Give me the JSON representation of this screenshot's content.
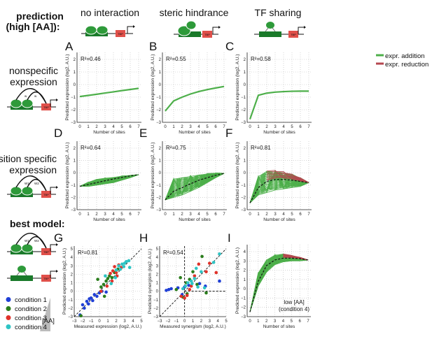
{
  "header": {
    "prediction_line1": "prediction",
    "prediction_line2": "(high [AA]):",
    "best_model": "best model:"
  },
  "columns": [
    "no interaction",
    "steric hindrance",
    "TF sharing"
  ],
  "rows": {
    "nonspecific": [
      "nonspecific",
      "expression"
    ],
    "position_specific": [
      "position specific",
      "expression"
    ]
  },
  "diagram_labels": {
    "tbp": "TBP",
    "w": "w",
    "w1": "W1",
    "w2": "W2"
  },
  "legend": {
    "addition": "expr. addition",
    "reduction": "expr. reduction",
    "addition_color": "#4daf4a",
    "reduction_color": "#b5474f"
  },
  "conditions": {
    "labels": [
      "condition 1",
      "condition 2",
      "condition 3",
      "condition 4"
    ],
    "colors": [
      "#1f3fd6",
      "#2a7d1c",
      "#e0322a",
      "#2ec4c4"
    ],
    "gradient_label": "[AA]"
  },
  "axis_labels": {
    "sites": "Number of sites",
    "pred_expr": "Predicted expression (log2, A.U.)",
    "meas_expr": "Measured expression (log2, A.U.)",
    "pred_syn": "Predicted synergism (log2, A.U.)",
    "meas_syn": "Measured synergism (log2, A.U.)"
  },
  "panel_I_note": [
    "low [AA]",
    "(condition 4)"
  ],
  "chart_data": [
    {
      "panel": "A",
      "type": "line",
      "r2": "R²=0.46",
      "x": [
        0,
        1,
        2,
        3,
        4,
        5,
        6,
        7
      ],
      "ylim": [
        -3,
        2
      ],
      "values": [
        -0.95,
        -0.86,
        -0.77,
        -0.67,
        -0.58,
        -0.48,
        -0.39,
        -0.3
      ]
    },
    {
      "panel": "B",
      "type": "line",
      "r2": "R²=0.55",
      "x": [
        0,
        1,
        2,
        3,
        4,
        5,
        6,
        7
      ],
      "ylim": [
        -3,
        2
      ],
      "values": [
        -2.1,
        -1.3,
        -1.0,
        -0.75,
        -0.55,
        -0.4,
        -0.27,
        -0.15
      ]
    },
    {
      "panel": "C",
      "type": "line",
      "r2": "R²=0.58",
      "x": [
        0,
        1,
        2,
        3,
        4,
        5,
        6,
        7
      ],
      "ylim": [
        -3,
        2
      ],
      "values": [
        -2.75,
        -0.85,
        -0.68,
        -0.6,
        -0.56,
        -0.53,
        -0.52,
        -0.52
      ]
    },
    {
      "panel": "D",
      "type": "line",
      "r2": "R²=0.64",
      "x": [
        0,
        1,
        2,
        3,
        4,
        5,
        6,
        7
      ],
      "ylim": [
        -3,
        2
      ],
      "mean": [
        -1.1,
        -0.95,
        -0.8,
        -0.65,
        -0.5,
        -0.38,
        -0.25,
        -0.15
      ],
      "upper": [
        -1.1,
        -0.75,
        -0.5,
        -0.4,
        -0.35,
        -0.25,
        -0.2,
        -0.15
      ],
      "lower": [
        -1.1,
        -1.1,
        -1.0,
        -0.9,
        -0.8,
        -0.6,
        -0.4,
        -0.15
      ]
    },
    {
      "panel": "E",
      "type": "line",
      "r2": "R²=0.75",
      "x": [
        0,
        1,
        2,
        3,
        4,
        5,
        6,
        7
      ],
      "ylim": [
        -3,
        2
      ],
      "mean": [
        -2.2,
        -1.5,
        -1.2,
        -0.9,
        -0.6,
        -0.4,
        -0.2,
        -0.05
      ],
      "upper": [
        -2.2,
        -0.4,
        -0.3,
        -0.2,
        -0.1,
        -0.05,
        0,
        -0.05
      ],
      "lower": [
        -2.2,
        -2.0,
        -1.8,
        -1.5,
        -1.2,
        -0.8,
        -0.4,
        -0.05
      ]
    },
    {
      "panel": "F",
      "type": "line",
      "r2": "R²=0.81",
      "x": [
        0,
        1,
        2,
        3,
        4,
        5,
        6,
        7
      ],
      "ylim": [
        -3,
        2
      ],
      "mean": [
        -2.45,
        -1.2,
        -0.7,
        -0.55,
        -0.55,
        -0.6,
        -0.7,
        -0.8
      ],
      "upper": [
        -2.45,
        -0.2,
        0.25,
        0.2,
        0.1,
        -0.1,
        -0.4,
        -0.8
      ],
      "lower": [
        -2.45,
        -1.8,
        -1.6,
        -1.4,
        -1.3,
        -1.2,
        -1.1,
        -0.8
      ],
      "reduction_from": 2
    },
    {
      "panel": "G",
      "type": "scatter",
      "r2": "R²=0.81",
      "xlim": [
        -3,
        5
      ],
      "ylim": [
        -3,
        5
      ],
      "series": [
        {
          "name": "condition 1",
          "points": [
            [
              -2.3,
              -2.8
            ],
            [
              -2,
              -1.6
            ],
            [
              -1.8,
              -2
            ],
            [
              -1.5,
              -1.2
            ],
            [
              -1.3,
              -1.5
            ],
            [
              -1,
              -0.8
            ],
            [
              -0.8,
              -1.1
            ],
            [
              -0.6,
              -0.4
            ],
            [
              -0.3,
              -0.6
            ],
            [
              0,
              -0.2
            ],
            [
              0.3,
              0
            ],
            [
              -1.2,
              -0.9
            ],
            [
              0.8,
              -0.1
            ]
          ]
        },
        {
          "name": "condition 2",
          "points": [
            [
              -2.2,
              -2.9
            ],
            [
              -0.2,
              1.4
            ],
            [
              0.5,
              0.8
            ],
            [
              0.8,
              1.2
            ],
            [
              1,
              1.5
            ],
            [
              1.2,
              1.8
            ],
            [
              1.5,
              1.6
            ],
            [
              0.6,
              -0.6
            ],
            [
              1.8,
              2.2
            ],
            [
              0.2,
              0.5
            ],
            [
              2.2,
              2.6
            ]
          ]
        },
        {
          "name": "condition 3",
          "points": [
            [
              0.2,
              0
            ],
            [
              0.9,
              0.6
            ],
            [
              1.3,
              2.1
            ],
            [
              1.6,
              2.4
            ],
            [
              1.8,
              2.9
            ],
            [
              2,
              2.2
            ],
            [
              2.3,
              3.1
            ],
            [
              2.6,
              2.8
            ],
            [
              1.5,
              1.2
            ],
            [
              2.1,
              1.8
            ]
          ]
        },
        {
          "name": "condition 4",
          "points": [
            [
              0.7,
              1.8
            ],
            [
              1.4,
              0.9
            ],
            [
              2,
              2.5
            ],
            [
              2.3,
              3
            ],
            [
              2.5,
              2.6
            ],
            [
              2.7,
              3.2
            ],
            [
              3,
              3.3
            ],
            [
              3.2,
              3.5
            ],
            [
              3.5,
              3.6
            ],
            [
              3.6,
              2.8
            ],
            [
              2.9,
              2.9
            ],
            [
              1.9,
              1.6
            ]
          ]
        }
      ]
    },
    {
      "panel": "H",
      "type": "scatter",
      "r2": "R²=0.54",
      "xlim": [
        -3,
        5
      ],
      "ylim": [
        -3,
        5
      ],
      "series": [
        {
          "name": "condition 1",
          "points": [
            [
              -2.2,
              0.1
            ],
            [
              -1.9,
              0.2
            ],
            [
              -1.6,
              0.3
            ],
            [
              -0.8,
              0.4
            ],
            [
              0,
              0.5
            ],
            [
              0.5,
              0.7
            ],
            [
              1.8,
              0.9
            ],
            [
              2.5,
              0.6
            ],
            [
              4.2,
              1.2
            ],
            [
              -0.3,
              -0.4
            ]
          ]
        },
        {
          "name": "condition 2",
          "points": [
            [
              -1,
              0.2
            ],
            [
              -0.5,
              1.6
            ],
            [
              0.2,
              1
            ],
            [
              0.6,
              1.4
            ],
            [
              1,
              2.3
            ],
            [
              1.5,
              0.8
            ],
            [
              2.1,
              4.1
            ],
            [
              2.6,
              -0.2
            ],
            [
              0.3,
              -0.3
            ],
            [
              -0.2,
              -0.7
            ]
          ]
        },
        {
          "name": "condition 3",
          "points": [
            [
              -0.4,
              -0.6
            ],
            [
              0,
              -0.8
            ],
            [
              0.3,
              -0.5
            ],
            [
              0.8,
              0.6
            ],
            [
              1.2,
              1.8
            ],
            [
              1.7,
              3.2
            ],
            [
              2.6,
              2.3
            ],
            [
              3,
              3.3
            ],
            [
              3.8,
              2.2
            ],
            [
              0.6,
              0.2
            ]
          ]
        },
        {
          "name": "condition 4",
          "points": [
            [
              -0.2,
              0.3
            ],
            [
              0.1,
              0.6
            ],
            [
              0.4,
              1
            ],
            [
              0.8,
              1.2
            ],
            [
              1.2,
              1.5
            ],
            [
              1.6,
              0.5
            ],
            [
              2,
              2.3
            ],
            [
              2.4,
              0.4
            ],
            [
              3.5,
              3.4
            ],
            [
              4.2,
              4.4
            ],
            [
              1.4,
              2.7
            ],
            [
              0.9,
              0.9
            ]
          ]
        }
      ]
    },
    {
      "panel": "I",
      "type": "line",
      "x": [
        0,
        1,
        2,
        3,
        4,
        5,
        6,
        7
      ],
      "ylim": [
        -3,
        4
      ],
      "mean": [
        -2.5,
        0.8,
        2.5,
        3.1,
        3.3,
        3.3,
        3.25,
        3.1
      ],
      "upper": [
        -2.5,
        1.8,
        3.2,
        3.7,
        3.8,
        3.6,
        3.4,
        3.1
      ],
      "lower": [
        -2.5,
        0.3,
        1.8,
        2.6,
        2.9,
        3.0,
        3.0,
        3.1
      ],
      "reduction_from": 4
    }
  ]
}
